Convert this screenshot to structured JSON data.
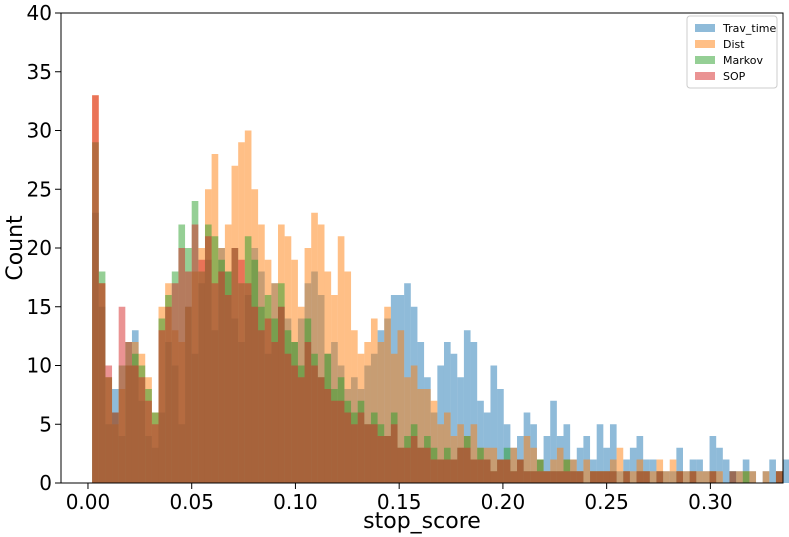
{
  "chart_data": {
    "type": "bar",
    "subtype": "overlapping-histogram",
    "title": "",
    "xlabel": "stop_score",
    "ylabel": "Count",
    "xlim": [
      -0.013,
      0.335
    ],
    "ylim": [
      0,
      40
    ],
    "xticks": [
      0.0,
      0.05,
      0.1,
      0.15,
      0.2,
      0.25,
      0.3
    ],
    "xtick_labels": [
      "0.00",
      "0.05",
      "0.10",
      "0.15",
      "0.20",
      "0.25",
      "0.30"
    ],
    "yticks": [
      0,
      5,
      10,
      15,
      20,
      25,
      30,
      35,
      40
    ],
    "ytick_labels": [
      "0",
      "5",
      "10",
      "15",
      "20",
      "25",
      "30",
      "35",
      "40"
    ],
    "grid": false,
    "legend_position": "top-right",
    "bar_opacity": 0.5,
    "series": [
      {
        "name": "Trav_time",
        "color": "#1f77b4",
        "bin_start": 0.002,
        "bin_width": 0.0032,
        "values": [
          23,
          15,
          5,
          8,
          4,
          10,
          13,
          7,
          4,
          3,
          6,
          12,
          10,
          5,
          15,
          11,
          17,
          19,
          13,
          20,
          18,
          14,
          12,
          16,
          20,
          18,
          11,
          17,
          15,
          14,
          12,
          14,
          17,
          18,
          16,
          11,
          12,
          10,
          8,
          9,
          8,
          10,
          11,
          13,
          14,
          16,
          16,
          17,
          15,
          12,
          9,
          6,
          10,
          12,
          11,
          9,
          13,
          12,
          7,
          6,
          10,
          8,
          5,
          3,
          4,
          6,
          5,
          2,
          4,
          7,
          4,
          5,
          2,
          3,
          4,
          2,
          5,
          3,
          5,
          1,
          2,
          3,
          4,
          2,
          2,
          1,
          1,
          1,
          3,
          1,
          2,
          2,
          1,
          4,
          3,
          2,
          1,
          1,
          2,
          1,
          0,
          1,
          2,
          1,
          2,
          2,
          0,
          0,
          1,
          0,
          0,
          0,
          1,
          0,
          0,
          0,
          1,
          0,
          1,
          0,
          1,
          0,
          0,
          0,
          0,
          0,
          0,
          0,
          0,
          0,
          0,
          0,
          0,
          0,
          1,
          0,
          0,
          0,
          0,
          0,
          0,
          0,
          1,
          0,
          1,
          0,
          0,
          0,
          0,
          0,
          0,
          0,
          0,
          0,
          1,
          0,
          1,
          0,
          0,
          1,
          0,
          0,
          1,
          0,
          0,
          0,
          1,
          0,
          0,
          0,
          0,
          0,
          0,
          0,
          0,
          0,
          0,
          0,
          0,
          0,
          0,
          0,
          0,
          0,
          0,
          0,
          0,
          0,
          0,
          0,
          0,
          0,
          0,
          1,
          0,
          0,
          1,
          0,
          0,
          0
        ]
      },
      {
        "name": "Dist",
        "color": "#ff7f0e",
        "bin_start": 0.002,
        "bin_width": 0.0032,
        "values": [
          33,
          17,
          9,
          5,
          8,
          10,
          12,
          11,
          9,
          6,
          15,
          17,
          13,
          12,
          15,
          18,
          20,
          25,
          28,
          20,
          22,
          27,
          29,
          30,
          25,
          22,
          19,
          17,
          22,
          21,
          19,
          15,
          20,
          23,
          22,
          18,
          16,
          21,
          18,
          13,
          11,
          12,
          14,
          12,
          15,
          11,
          13,
          9,
          10,
          8,
          8,
          7,
          5,
          6,
          4,
          5,
          4,
          5,
          3,
          3,
          3,
          2,
          2,
          3,
          2,
          4,
          3,
          2,
          1,
          2,
          3,
          2,
          2,
          1,
          2,
          1,
          1,
          1,
          2,
          3,
          1,
          1,
          2,
          1,
          1,
          2,
          1,
          2,
          1,
          1,
          1,
          1,
          1,
          1,
          1,
          0,
          0,
          1,
          1,
          1,
          0,
          1,
          0,
          1,
          0,
          0,
          1,
          0,
          0,
          0,
          0,
          0,
          1,
          0,
          1,
          0,
          0,
          0,
          0,
          1,
          0,
          0,
          0,
          0,
          1,
          0,
          0,
          0,
          1,
          0,
          0,
          0,
          0,
          0,
          1,
          0,
          0,
          1,
          0,
          0,
          0,
          0,
          0,
          0,
          0,
          0,
          0,
          1,
          0,
          0,
          0,
          0,
          0,
          1,
          0,
          0,
          0,
          1,
          0,
          0,
          0,
          0,
          0,
          0,
          0,
          0,
          1,
          0,
          0,
          0,
          0,
          0,
          0,
          1,
          0,
          0,
          0,
          0,
          0,
          0,
          0,
          0,
          0,
          0,
          0,
          0,
          0,
          0,
          0,
          0,
          0,
          0,
          0,
          0,
          0,
          0
        ]
      },
      {
        "name": "Markov",
        "color": "#2ca02c",
        "bin_start": 0.002,
        "bin_width": 0.0032,
        "values": [
          29,
          18,
          9,
          6,
          10,
          12,
          11,
          10,
          8,
          6,
          14,
          16,
          18,
          22,
          20,
          24,
          18,
          22,
          21,
          19,
          18,
          20,
          17,
          21,
          19,
          15,
          16,
          14,
          17,
          13,
          12,
          10,
          14,
          11,
          9,
          11,
          8,
          9,
          7,
          6,
          7,
          5,
          6,
          5,
          4,
          6,
          3,
          4,
          5,
          3,
          4,
          3,
          2,
          3,
          2,
          3,
          4,
          2,
          3,
          2,
          1,
          2,
          3,
          1,
          2,
          1,
          1,
          2,
          1,
          1,
          1,
          2,
          1,
          1,
          0,
          1,
          1,
          1,
          1,
          0,
          1,
          0,
          1,
          1,
          0,
          1,
          0,
          0,
          1,
          0,
          1,
          0,
          0,
          1,
          0,
          0,
          1,
          0,
          1,
          0,
          0,
          0,
          0,
          1,
          0,
          0,
          0,
          0,
          0,
          1,
          0,
          0,
          0,
          0,
          0,
          0,
          1,
          0,
          0,
          0,
          0,
          0,
          0,
          0,
          0,
          0,
          0,
          0,
          1,
          0,
          0,
          0,
          0,
          0,
          0,
          0,
          0,
          0,
          0,
          0,
          0,
          0,
          0,
          0,
          0,
          0,
          0,
          0,
          0,
          0,
          0,
          0,
          0,
          0,
          0,
          0,
          0,
          0,
          0,
          0,
          0,
          0,
          0,
          0,
          0,
          0,
          0,
          0,
          0,
          0,
          0,
          0,
          0,
          0,
          0,
          0,
          0,
          0,
          0,
          0,
          0,
          0,
          0,
          0,
          0,
          0,
          0,
          0,
          0,
          0,
          0,
          0,
          0,
          0,
          0,
          0,
          0,
          0,
          0,
          0
        ]
      },
      {
        "name": "SOP",
        "color": "#d62728",
        "bin_start": 0.002,
        "bin_width": 0.0032,
        "values": [
          33,
          17,
          10,
          6,
          15,
          12,
          10,
          9,
          7,
          5,
          13,
          15,
          17,
          20,
          18,
          22,
          19,
          21,
          17,
          18,
          16,
          20,
          19,
          17,
          15,
          13,
          14,
          12,
          15,
          11,
          10,
          9,
          12,
          10,
          9,
          8,
          7,
          7,
          6,
          5,
          6,
          5,
          5,
          4,
          4,
          5,
          3,
          3,
          4,
          3,
          3,
          2,
          2,
          2,
          2,
          3,
          3,
          2,
          2,
          2,
          1,
          2,
          2,
          1,
          2,
          1,
          1,
          1,
          1,
          1,
          1,
          1,
          1,
          1,
          0,
          1,
          1,
          1,
          1,
          0,
          1,
          0,
          1,
          1,
          0,
          1,
          0,
          0,
          1,
          0,
          1,
          0,
          0,
          1,
          0,
          0,
          1,
          0,
          0,
          0,
          0,
          0,
          0,
          1,
          0,
          0,
          0,
          0,
          0,
          1,
          0,
          0,
          0,
          0,
          0,
          0,
          1,
          0,
          0,
          0,
          0,
          0,
          0,
          0,
          0,
          0,
          0,
          0,
          1,
          0,
          0,
          0,
          0,
          0,
          0,
          0,
          0,
          0,
          0,
          0,
          0,
          0,
          0,
          0,
          0,
          0,
          0,
          0,
          0,
          0,
          0,
          0,
          0,
          0,
          0,
          0,
          0,
          0,
          0,
          0,
          0,
          0,
          0,
          0,
          0,
          0,
          0,
          0,
          0,
          0,
          0,
          0,
          0,
          0,
          0,
          0,
          0,
          0,
          0,
          0,
          0,
          0,
          0,
          0,
          0,
          0,
          0,
          0,
          0,
          0,
          0,
          0,
          0,
          0,
          0,
          0,
          0,
          0,
          0,
          0
        ]
      }
    ]
  }
}
